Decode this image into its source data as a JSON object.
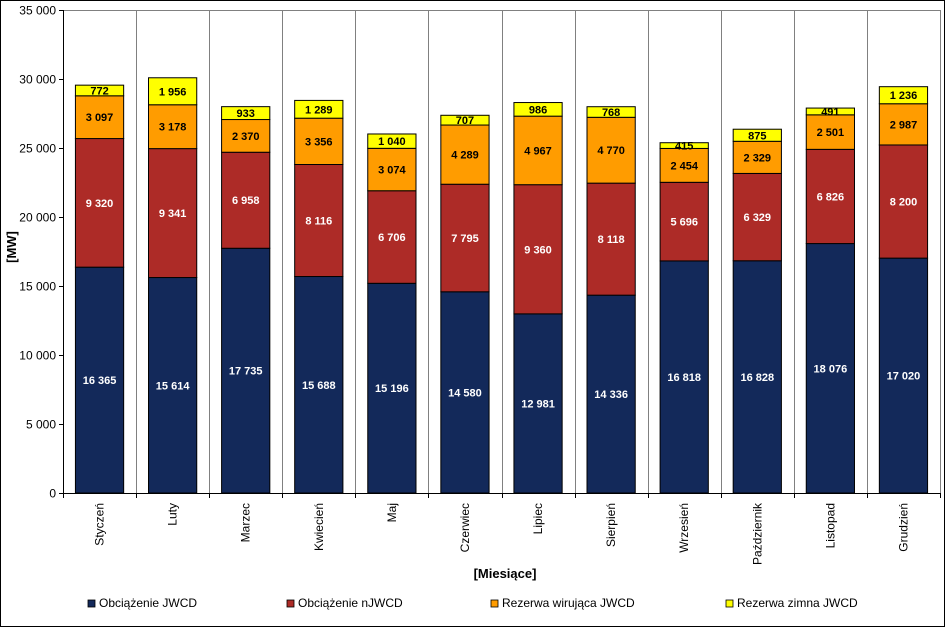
{
  "chart_data": {
    "type": "bar",
    "stacked": true,
    "xlabel": "[Miesiące]",
    "ylabel": "[MW]",
    "ylim": [
      0,
      35000
    ],
    "yticks": [
      0,
      5000,
      10000,
      15000,
      20000,
      25000,
      30000,
      35000
    ],
    "ytick_labels": [
      "0",
      "5 000",
      "10 000",
      "15 000",
      "20 000",
      "25 000",
      "30 000",
      "35 000"
    ],
    "grid": "vertical",
    "legend_position": "bottom",
    "categories": [
      "Styczeń",
      "Luty",
      "Marzec",
      "Kwiecień",
      "Maj",
      "Czerwiec",
      "Lipiec",
      "Sierpień",
      "Wrzesień",
      "Październik",
      "Listopad",
      "Grudzień"
    ],
    "series": [
      {
        "name": "Obciążenie JWCD",
        "color": "#13295a",
        "label_color": "#ffffff",
        "values": [
          16365,
          15614,
          17735,
          15688,
          15196,
          14580,
          12981,
          14336,
          16818,
          16828,
          18076,
          17020
        ],
        "labels": [
          "16 365",
          "15 614",
          "17 735",
          "15 688",
          "15 196",
          "14 580",
          "12 981",
          "14 336",
          "16 818",
          "16 828",
          "18 076",
          "17 020"
        ]
      },
      {
        "name": "Obciążenie nJWCD",
        "color": "#ad2b27",
        "label_color": "#ffffff",
        "values": [
          9320,
          9341,
          6958,
          8116,
          6706,
          7795,
          9360,
          8118,
          5696,
          6329,
          6826,
          8200
        ],
        "labels": [
          "9 320",
          "9 341",
          "6 958",
          "8 116",
          "6 706",
          "7 795",
          "9 360",
          "8 118",
          "5 696",
          "6 329",
          "6 826",
          "8 200"
        ]
      },
      {
        "name": "Rezerwa wirująca JWCD",
        "color": "#ff9c00",
        "label_color": "#000000",
        "values": [
          3097,
          3178,
          2370,
          3356,
          3074,
          4289,
          4967,
          4770,
          2454,
          2329,
          2501,
          2987
        ],
        "labels": [
          "3 097",
          "3 178",
          "2 370",
          "3 356",
          "3 074",
          "4 289",
          "4 967",
          "4 770",
          "2 454",
          "2 329",
          "2 501",
          "2 987"
        ]
      },
      {
        "name": "Rezerwa zimna JWCD",
        "color": "#ffff00",
        "label_color": "#000000",
        "values": [
          772,
          1956,
          933,
          1289,
          1040,
          707,
          986,
          768,
          415,
          875,
          491,
          1236
        ],
        "labels": [
          "772",
          "1 956",
          "933",
          "1 289",
          "1 040",
          "707",
          "986",
          "768",
          "415",
          "875",
          "491",
          "1 236"
        ]
      }
    ]
  }
}
